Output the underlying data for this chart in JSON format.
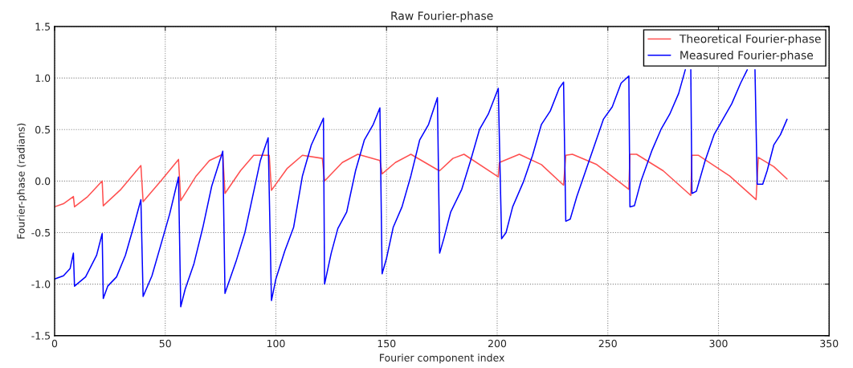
{
  "chart_data": {
    "type": "line",
    "title": "Raw Fourier-phase",
    "xlabel": "Fourier component index",
    "ylabel": "Fourier-phase (radians)",
    "xlim": [
      0,
      350
    ],
    "xticks": [
      0,
      50,
      100,
      150,
      200,
      250,
      300,
      350
    ],
    "ylim": [
      -1.5,
      1.5
    ],
    "yticks": [
      {
        "value": -1.5,
        "label": "-1.5"
      },
      {
        "value": -1.0,
        "label": "-1.0"
      },
      {
        "value": -0.5,
        "label": "-0.5"
      },
      {
        "value": 0,
        "label": "0.0"
      },
      {
        "value": 0.5,
        "label": "0.5"
      },
      {
        "value": 1.0,
        "label": "1.0"
      },
      {
        "value": 1.5,
        "label": "1.5"
      }
    ],
    "grid": true,
    "legend": "top right",
    "line_style": "solid",
    "marker": "none",
    "series": [
      {
        "name": "Theoretical Fourier-phase",
        "color": "#ff5050",
        "x": [
          0,
          4,
          8.5,
          9,
          15,
          21.5,
          22,
          30,
          39,
          40,
          48,
          56,
          57,
          64,
          70,
          76,
          77,
          84,
          90,
          97,
          98,
          105,
          112,
          121,
          122,
          130,
          137,
          147,
          148,
          154,
          161,
          173,
          174,
          180,
          185,
          200.5,
          201,
          210,
          220,
          230,
          231,
          234,
          245,
          259.5,
          260,
          263,
          275,
          287.5,
          288,
          291,
          305,
          317,
          318,
          325,
          331
        ],
        "values": [
          -0.25,
          -0.22,
          -0.15,
          -0.25,
          -0.15,
          0.0,
          -0.24,
          -0.08,
          0.15,
          -0.2,
          0.0,
          0.21,
          -0.19,
          0.05,
          0.2,
          0.26,
          -0.12,
          0.1,
          0.25,
          0.25,
          -0.09,
          0.12,
          0.25,
          0.22,
          0.0,
          0.18,
          0.26,
          0.2,
          0.07,
          0.18,
          0.26,
          0.11,
          0.1,
          0.22,
          0.26,
          0.04,
          0.18,
          0.26,
          0.16,
          -0.04,
          0.25,
          0.26,
          0.16,
          -0.08,
          0.26,
          0.26,
          0.1,
          -0.14,
          0.25,
          0.25,
          0.05,
          -0.18,
          0.23,
          0.14,
          0.02
        ]
      },
      {
        "name": "Measured Fourier-phase",
        "color": "#0000ff",
        "x": [
          0,
          4,
          7,
          8.5,
          9,
          14,
          19,
          21.5,
          22,
          24,
          28,
          32,
          36,
          39,
          40,
          44,
          48,
          52,
          56,
          57,
          59,
          63,
          67,
          71,
          76,
          77,
          82,
          86,
          90,
          93,
          96.5,
          98,
          100,
          104,
          108,
          112,
          116,
          121.5,
          122,
          125,
          128,
          132,
          136,
          140,
          144,
          147,
          148,
          150,
          153,
          157,
          161,
          165,
          169,
          173,
          174,
          176,
          179,
          184,
          188,
          192,
          196,
          200.5,
          202,
          204,
          207,
          212,
          216,
          220,
          224,
          228,
          230,
          231,
          233,
          236,
          240,
          244,
          248,
          252,
          256,
          259.5,
          260,
          262,
          265,
          270,
          274,
          278,
          282,
          285,
          286,
          287.5,
          288,
          290,
          294,
          298,
          302,
          306,
          310,
          313,
          314,
          316.5,
          317.5,
          320,
          322,
          325,
          328,
          331
        ],
        "values": [
          -0.95,
          -0.92,
          -0.85,
          -0.7,
          -1.02,
          -0.93,
          -0.72,
          -0.51,
          -1.14,
          -1.02,
          -0.93,
          -0.72,
          -0.42,
          -0.18,
          -1.12,
          -0.92,
          -0.62,
          -0.32,
          0.04,
          -1.22,
          -1.05,
          -0.8,
          -0.45,
          -0.05,
          0.29,
          -1.09,
          -0.78,
          -0.5,
          -0.1,
          0.2,
          0.42,
          -1.16,
          -0.95,
          -0.68,
          -0.45,
          0.05,
          0.35,
          0.61,
          -1.0,
          -0.7,
          -0.46,
          -0.3,
          0.1,
          0.4,
          0.55,
          0.71,
          -0.9,
          -0.75,
          -0.45,
          -0.25,
          0.05,
          0.4,
          0.55,
          0.81,
          -0.7,
          -0.55,
          -0.3,
          -0.08,
          0.2,
          0.5,
          0.65,
          0.9,
          -0.56,
          -0.5,
          -0.25,
          0.0,
          0.25,
          0.55,
          0.68,
          0.9,
          0.96,
          -0.39,
          -0.37,
          -0.15,
          0.1,
          0.35,
          0.6,
          0.72,
          0.95,
          1.02,
          -0.25,
          -0.24,
          0.0,
          0.3,
          0.5,
          0.65,
          0.85,
          1.08,
          null,
          1.08,
          -0.12,
          -0.1,
          0.2,
          0.45,
          0.6,
          0.75,
          0.95,
          1.08,
          null,
          1.08,
          -0.03,
          -0.03,
          0.1,
          0.35,
          0.45,
          0.6
        ]
      }
    ]
  }
}
